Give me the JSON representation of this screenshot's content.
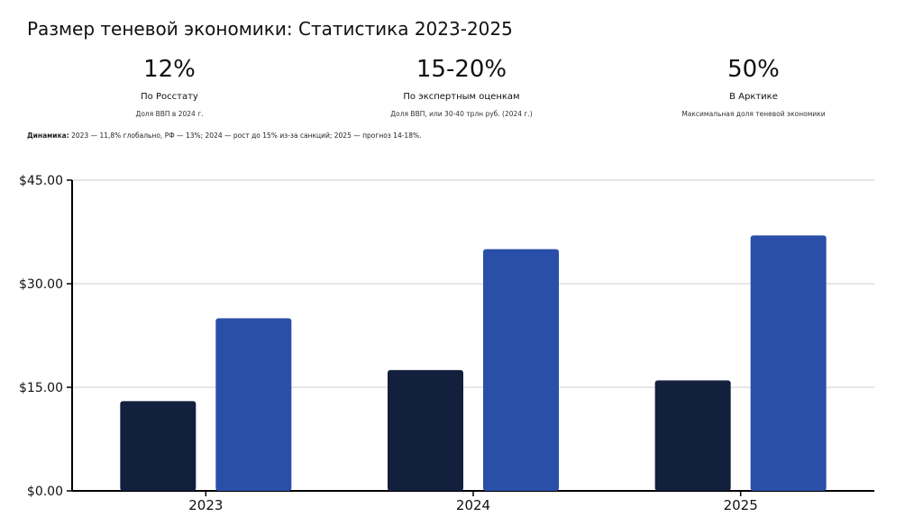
{
  "title": "Размер теневой экономики: Статистика 2023-2025",
  "stats": [
    {
      "value": "12%",
      "label": "По Росстату",
      "sub": "Доля ВВП в 2024 г."
    },
    {
      "value": "15-20%",
      "label": "По экспертным оценкам",
      "sub": "Доля ВВП, или 30-40 трлн руб. (2024 г.)"
    },
    {
      "value": "50%",
      "label": "В Арктике",
      "sub": "Максимальная доля теневой экономики"
    }
  ],
  "dynamics": {
    "label": "Динамика:",
    "text": "2023 — 11,8% глобально, РФ — 13%; 2024 — рост до 15% из-за санкций; 2025 — прогноз 14-18%."
  },
  "colors": {
    "dark": "#121f3d",
    "blue": "#2a4fa8",
    "grid": "#cccccc",
    "axis": "#000000"
  },
  "chart_data": {
    "type": "bar",
    "categories": [
      "2023",
      "2024",
      "2025"
    ],
    "series": [
      {
        "values": [
          13,
          17.5,
          16
        ],
        "color": "#121f3d"
      },
      {
        "values": [
          25,
          35,
          37
        ],
        "color": "#2a4fa8"
      }
    ],
    "yticks": [
      "$0.00",
      "$15.00",
      "$30.00",
      "$45.00"
    ],
    "ylim": [
      0,
      45
    ],
    "grid": true
  }
}
